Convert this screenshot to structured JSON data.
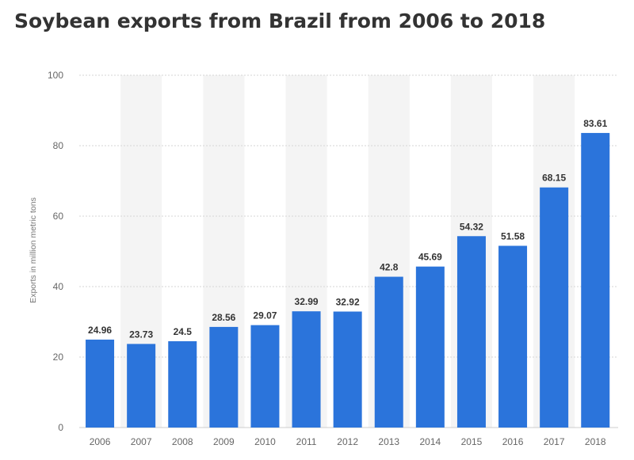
{
  "chart_data": {
    "type": "bar",
    "title": "Soybean exports from Brazil from 2006 to 2018",
    "xlabel": "",
    "ylabel": "Exports in million metric tons",
    "categories": [
      "2006",
      "2007",
      "2008",
      "2009",
      "2010",
      "2011",
      "2012",
      "2013",
      "2014",
      "2015",
      "2016",
      "2017",
      "2018"
    ],
    "values": [
      24.96,
      23.73,
      24.5,
      28.56,
      29.07,
      32.99,
      32.92,
      42.8,
      45.69,
      54.32,
      51.58,
      68.15,
      83.61
    ],
    "value_labels": [
      "24.96",
      "23.73",
      "24.5",
      "28.56",
      "29.07",
      "32.99",
      "32.92",
      "42.8",
      "45.69",
      "54.32",
      "51.58",
      "68.15",
      "83.61"
    ],
    "ylim": [
      0,
      100
    ],
    "yticks": [
      "0",
      "20",
      "40",
      "60",
      "80",
      "100"
    ],
    "grid": true,
    "bar_color": "#2b74db"
  }
}
